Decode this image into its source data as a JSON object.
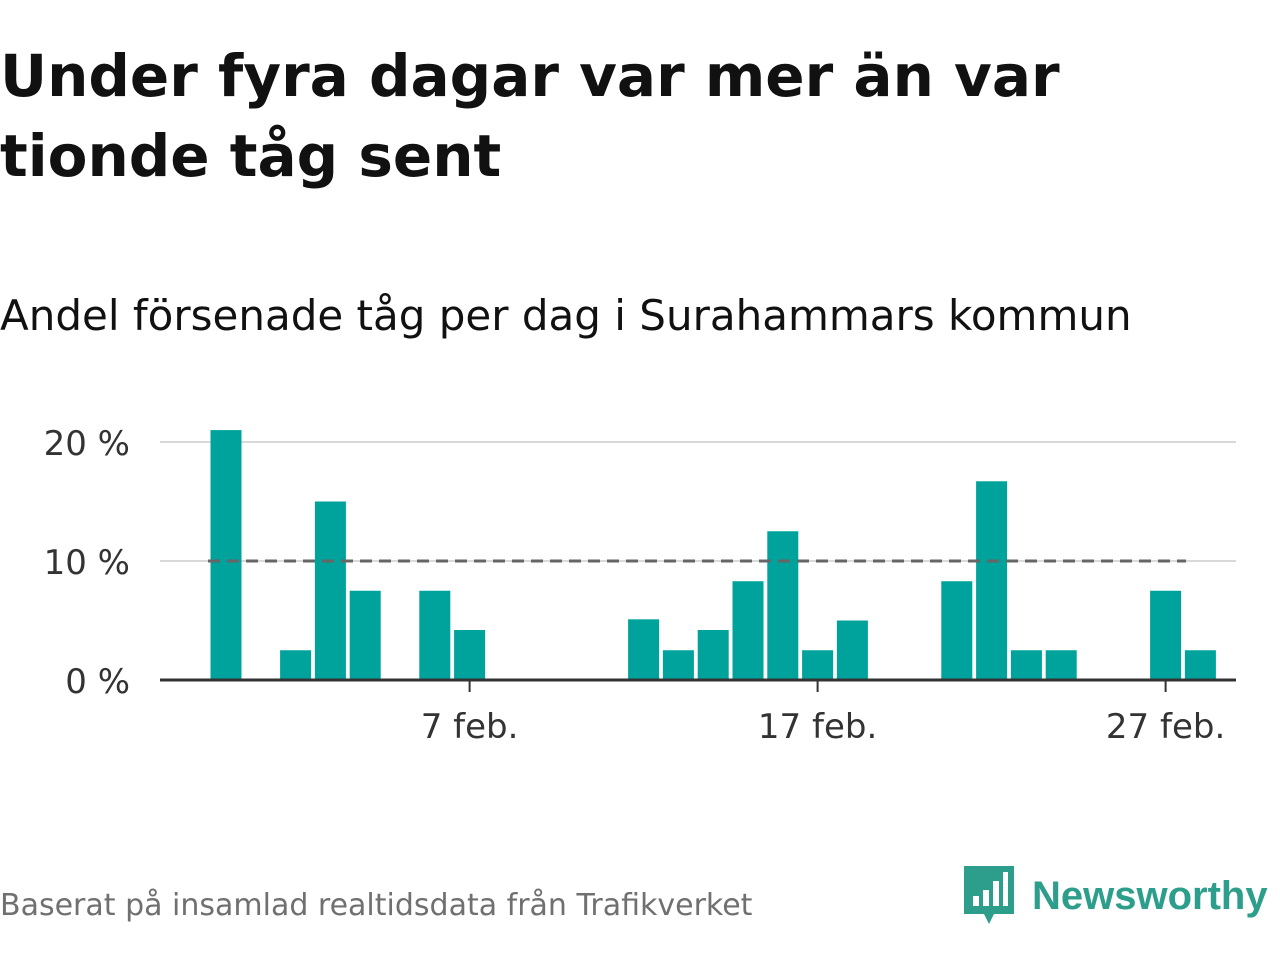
{
  "title": "Under fyra dagar var mer än var tionde tåg sent",
  "subtitle": "Andel försenade tåg per dag i Surahammars kommun",
  "source": "Baserat på insamlad realtidsdata från Trafikverket",
  "brand": {
    "name": "Newsworthy",
    "icon": "newsworthy-logo-icon",
    "color": "#2e9e8c"
  },
  "colors": {
    "bar": "#00a39b",
    "threshold": "#666666",
    "grid": "#d9d9d9",
    "axis": "#333333"
  },
  "chart_data": {
    "type": "bar",
    "x": [
      "2020-01-31",
      "2020-02-01",
      "2020-02-02",
      "2020-02-03",
      "2020-02-04",
      "2020-02-05",
      "2020-02-06",
      "2020-02-07",
      "2020-02-08",
      "2020-02-09",
      "2020-02-10",
      "2020-02-11",
      "2020-02-12",
      "2020-02-13",
      "2020-02-14",
      "2020-02-15",
      "2020-02-16",
      "2020-02-17",
      "2020-02-18",
      "2020-02-19",
      "2020-02-20",
      "2020-02-21",
      "2020-02-22",
      "2020-02-23",
      "2020-02-24",
      "2020-02-25",
      "2020-02-26",
      "2020-02-27",
      "2020-02-28"
    ],
    "values": [
      21,
      0,
      2.5,
      15,
      7.5,
      0,
      7.5,
      4.2,
      0,
      0,
      0,
      0,
      5.1,
      2.5,
      4.2,
      8.3,
      12.5,
      2.5,
      5.0,
      0,
      0,
      8.3,
      16.7,
      2.5,
      2.5,
      0,
      0,
      7.5,
      2.5
    ],
    "unit": "%",
    "threshold": 10,
    "ylim": [
      0,
      20
    ],
    "yticks": [
      0,
      10,
      20
    ],
    "ytick_labels": [
      "0 %",
      "10 %",
      "20 %"
    ],
    "xticks": [
      {
        "date": "2020-02-07",
        "label": "7 feb."
      },
      {
        "date": "2020-02-17",
        "label": "17 feb."
      },
      {
        "date": "2020-02-27",
        "label": "27 feb."
      }
    ],
    "grid": true,
    "legend": "none"
  }
}
